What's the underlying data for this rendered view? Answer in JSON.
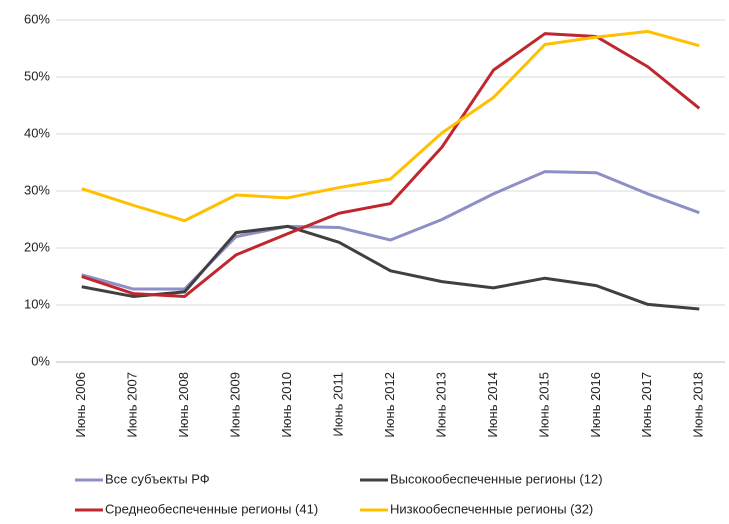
{
  "chart_data": {
    "type": "line",
    "categories": [
      "Июнь 2006",
      "Июнь 2007",
      "Июнь 2008",
      "Июнь 2009",
      "Июнь 2010",
      "Июнь 2011",
      "Июнь 2012",
      "Июнь 2013",
      "Июнь 2014",
      "Июнь 2015",
      "Июнь 2016",
      "Июнь 2017",
      "Июнь 2018"
    ],
    "series": [
      {
        "name": "Все субъекты РФ",
        "color": "#8e8fc6",
        "values": [
          15.3,
          12.8,
          12.8,
          22.0,
          23.8,
          23.6,
          21.4,
          25.0,
          29.5,
          33.4,
          33.2,
          29.5,
          26.2
        ]
      },
      {
        "name": "Высокообеспеченные  регионы (12)",
        "color": "#404040",
        "values": [
          13.2,
          11.5,
          12.3,
          22.7,
          23.8,
          21.0,
          16.0,
          14.1,
          13.0,
          14.7,
          13.4,
          10.1,
          9.3
        ]
      },
      {
        "name": "Среднеобеспеченные  регионы (41)",
        "color": "#c0272d",
        "values": [
          15.0,
          12.0,
          11.5,
          18.8,
          22.5,
          26.1,
          27.8,
          37.7,
          51.2,
          57.6,
          57.1,
          51.8,
          44.5
        ]
      },
      {
        "name": "Низкообеспеченные  регионы (32)",
        "color": "#ffc000",
        "values": [
          30.4,
          27.5,
          24.8,
          29.3,
          28.8,
          30.6,
          32.1,
          40.2,
          46.4,
          55.7,
          57.0,
          58.0,
          55.5
        ]
      }
    ],
    "ylim": [
      0,
      60
    ],
    "yticks": [
      {
        "value": 0,
        "label": "0%"
      },
      {
        "value": 10,
        "label": "10%"
      },
      {
        "value": 20,
        "label": "20%"
      },
      {
        "value": 30,
        "label": "30%"
      },
      {
        "value": 40,
        "label": "40%"
      },
      {
        "value": 50,
        "label": "50%"
      },
      {
        "value": 60,
        "label": "60%"
      }
    ],
    "grid": true
  }
}
